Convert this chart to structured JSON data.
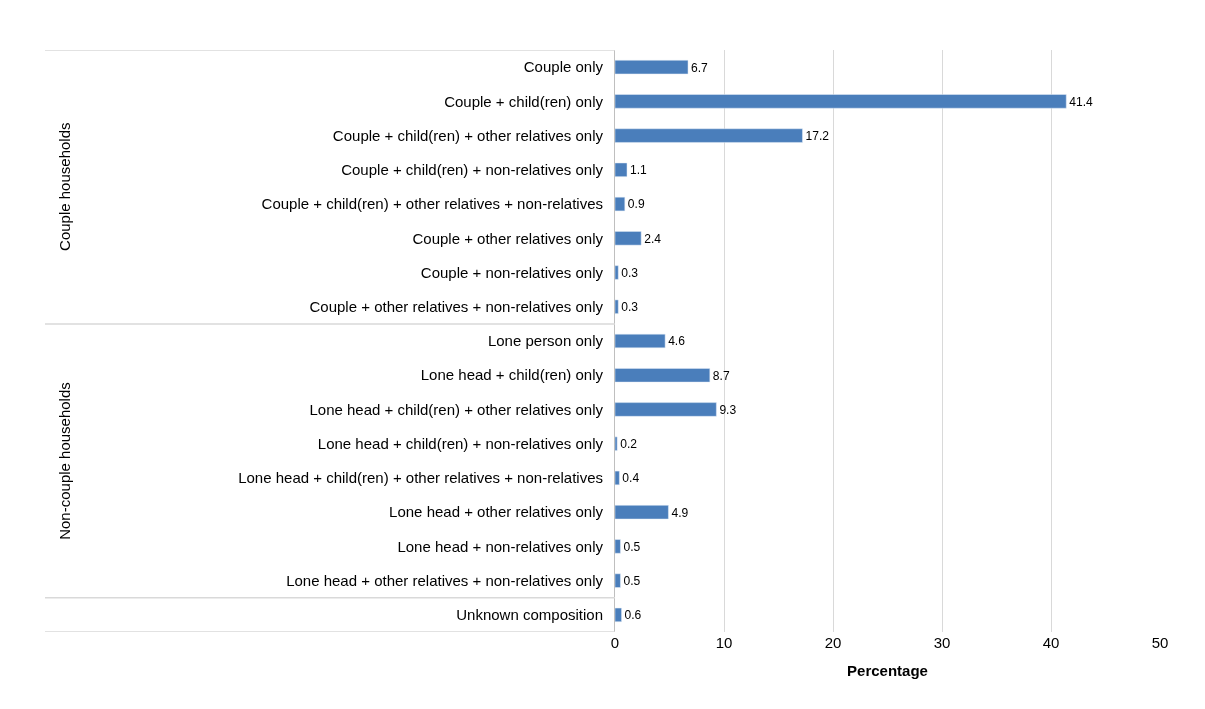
{
  "chart_data": {
    "type": "bar",
    "orientation": "horizontal",
    "xlabel": "Percentage",
    "categories": [
      "Couple only",
      "Couple + child(ren) only",
      "Couple + child(ren) + other relatives only",
      "Couple + child(ren) + non-relatives only",
      "Couple + child(ren) + other relatives + non-relatives",
      "Couple + other relatives only",
      "Couple + non-relatives only",
      "Couple + other relatives + non-relatives only",
      "Lone person only",
      "Lone head + child(ren) only",
      "Lone head + child(ren) + other relatives only",
      "Lone head + child(ren) + non-relatives only",
      "Lone head + child(ren) + other relatives + non-relatives",
      "Lone head + other relatives only",
      "Lone head + non-relatives only",
      "Lone head + other relatives + non-relatives only",
      "Unknown composition"
    ],
    "values": [
      6.7,
      41.4,
      17.2,
      1.1,
      0.9,
      2.4,
      0.3,
      0.3,
      4.6,
      8.7,
      9.3,
      0.2,
      0.4,
      4.9,
      0.5,
      0.5,
      0.6
    ],
    "color": "#4a7ebb",
    "xlim": [
      0,
      50
    ],
    "xticks": [
      0,
      10,
      20,
      30,
      40,
      50
    ],
    "grid": "x",
    "data_labels": true,
    "legend": false,
    "annotations": [
      "Couple households",
      "Non-couple households"
    ]
  }
}
